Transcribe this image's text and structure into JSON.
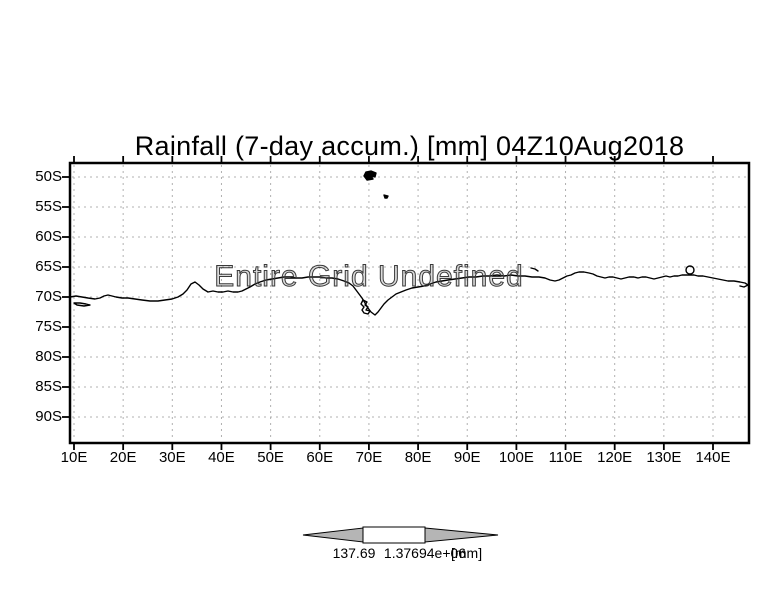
{
  "window": {
    "background": "#ffffff"
  },
  "title": "Rainfall (7-day accum.) [mm] 04Z10Aug2018",
  "map": {
    "undefined_message": "Entire Grid Undefined",
    "coastline_color": "#000000",
    "grid_color": "#b0b0b0",
    "frame_color": "#000000"
  },
  "axes": {
    "lat_labels": [
      "50S",
      "55S",
      "60S",
      "65S",
      "70S",
      "75S",
      "80S",
      "85S",
      "90S"
    ],
    "lon_labels": [
      "10E",
      "20E",
      "30E",
      "40E",
      "50E",
      "60E",
      "70E",
      "80E",
      "90E",
      "100E",
      "110E",
      "120E",
      "130E",
      "140E"
    ]
  },
  "colorbar": {
    "min_label": "137.69",
    "max_label": "1.37694e+06",
    "units_label": "[mm]",
    "arrow_color": "#b5b5b5",
    "mid_color": "#ffffff"
  },
  "chart_data": {
    "type": "map",
    "title": "Rainfall (7-day accum.) [mm] 04Z10Aug2018",
    "lat_ticks": [
      "50S",
      "55S",
      "60S",
      "65S",
      "70S",
      "75S",
      "80S",
      "85S",
      "90S"
    ],
    "lon_ticks": [
      "10E",
      "20E",
      "30E",
      "40E",
      "50E",
      "60E",
      "70E",
      "80E",
      "90E",
      "100E",
      "110E",
      "120E",
      "130E",
      "140E"
    ],
    "grid": "dotted",
    "status": "Entire Grid Undefined",
    "colorbar_breaks": [
      "137.69",
      "1.37694e+06"
    ],
    "colorbar_units": "[mm]"
  }
}
